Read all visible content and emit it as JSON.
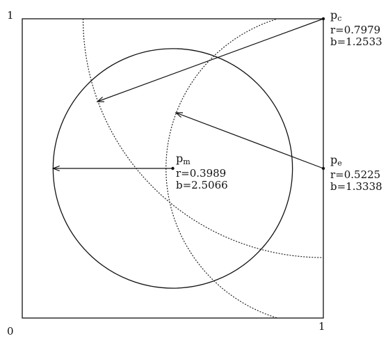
{
  "axes": {
    "x_max_label": "1",
    "y_max_label": "1",
    "origin_label": "0"
  },
  "points": [
    {
      "id": "pc",
      "name_base": "p",
      "name_sub": "c",
      "r_text": "r=0.7979",
      "b_text": "b=1.2533",
      "x": 1.0,
      "y": 1.0,
      "radius": 0.7979
    },
    {
      "id": "pe",
      "name_base": "p",
      "name_sub": "e",
      "r_text": "r=0.5225",
      "b_text": "b=1.3338",
      "x": 1.0,
      "y": 0.5,
      "radius": 0.5225
    },
    {
      "id": "pm",
      "name_base": "p",
      "name_sub": "m",
      "r_text": "r=0.3989",
      "b_text": "b=2.5066",
      "x": 0.5,
      "y": 0.5,
      "radius": 0.3989
    }
  ]
}
